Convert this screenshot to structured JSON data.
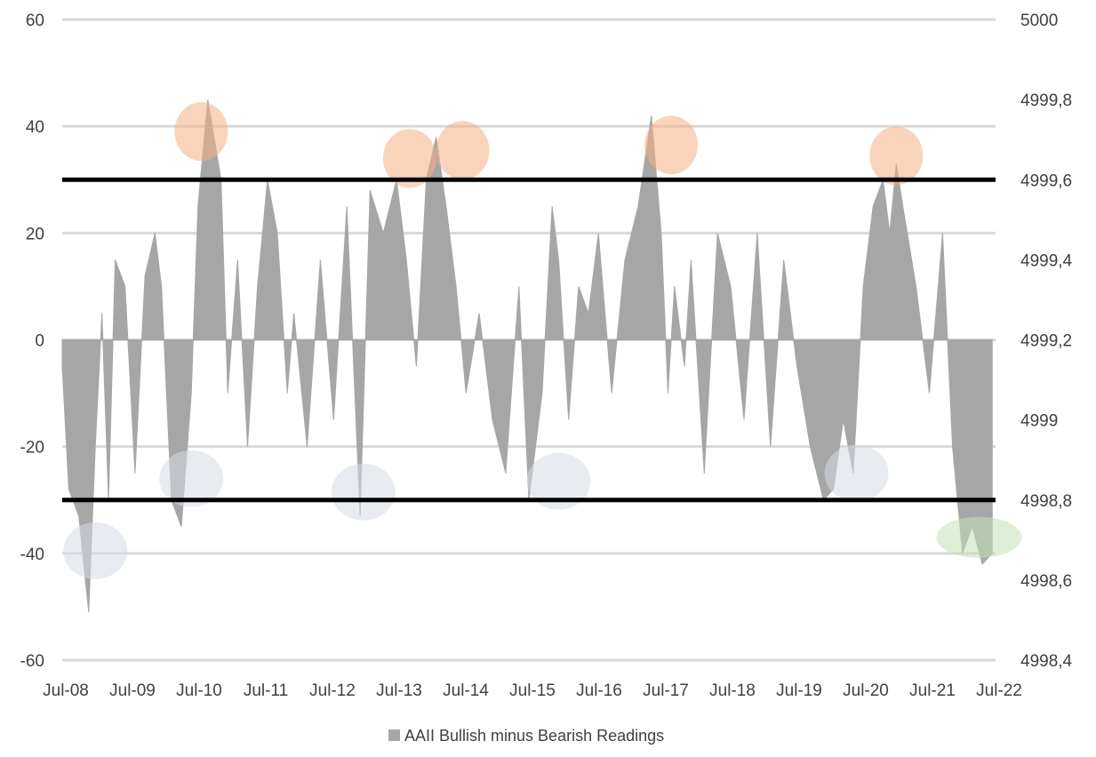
{
  "chart_data": {
    "type": "area",
    "title": "",
    "xlabel": "",
    "ylabel": "",
    "x_categories": [
      "Jul-08",
      "Jul-09",
      "Jul-10",
      "Jul-11",
      "Jul-12",
      "Jul-13",
      "Jul-14",
      "Jul-15",
      "Jul-16",
      "Jul-17",
      "Jul-18",
      "Jul-19",
      "Jul-20",
      "Jul-21",
      "Jul-22"
    ],
    "x_range": [
      2008.5,
      2022.6
    ],
    "ylim_left": [
      -60,
      60
    ],
    "yticks_left": [
      60,
      40,
      20,
      0,
      -20,
      -40,
      -60
    ],
    "ytick_labels_left": [
      "60",
      "40",
      "20",
      "0",
      "-20",
      "-40",
      "-60"
    ],
    "ylim_right": [
      4998.4,
      5000
    ],
    "ytick_labels_right": [
      "5000",
      "4999,8",
      "4999,6",
      "4999,4",
      "4999,2",
      "4999",
      "4998,8",
      "4998,6",
      "4998,4"
    ],
    "grid": true,
    "legend_position": "bottom",
    "series": [
      {
        "name": "AAII Bullish minus Bearish Readings",
        "color": "#a6a6a6",
        "x": [
          2008.5,
          2008.6,
          2008.75,
          2008.9,
          2009.0,
          2009.1,
          2009.2,
          2009.3,
          2009.45,
          2009.6,
          2009.75,
          2009.9,
          2010.0,
          2010.15,
          2010.3,
          2010.45,
          2010.55,
          2010.7,
          2010.9,
          2011.0,
          2011.15,
          2011.3,
          2011.45,
          2011.6,
          2011.75,
          2011.9,
          2012.0,
          2012.2,
          2012.4,
          2012.6,
          2012.8,
          2013.0,
          2013.15,
          2013.35,
          2013.55,
          2013.7,
          2013.85,
          2014.0,
          2014.15,
          2014.3,
          2014.45,
          2014.6,
          2014.8,
          2015.0,
          2015.2,
          2015.4,
          2015.55,
          2015.75,
          2015.9,
          2016.0,
          2016.15,
          2016.3,
          2016.45,
          2016.6,
          2016.8,
          2017.0,
          2017.2,
          2017.4,
          2017.55,
          2017.65,
          2017.75,
          2017.9,
          2018.0,
          2018.2,
          2018.4,
          2018.6,
          2018.8,
          2019.0,
          2019.2,
          2019.4,
          2019.6,
          2019.8,
          2020.0,
          2020.15,
          2020.3,
          2020.45,
          2020.6,
          2020.75,
          2020.9,
          2021.0,
          2021.1,
          2021.2,
          2021.4,
          2021.6,
          2021.8,
          2021.95,
          2022.1,
          2022.25,
          2022.4,
          2022.55
        ],
        "y": [
          -5,
          -28,
          -33,
          -51,
          -20,
          5,
          -30,
          15,
          10,
          -25,
          12,
          20,
          10,
          -30,
          -35,
          -10,
          25,
          45,
          30,
          -10,
          15,
          -20,
          10,
          30,
          20,
          -10,
          5,
          -20,
          15,
          -15,
          25,
          -33,
          28,
          20,
          30,
          15,
          -5,
          30,
          38,
          25,
          10,
          -10,
          5,
          -15,
          -25,
          10,
          -30,
          -10,
          25,
          15,
          -15,
          10,
          5,
          20,
          -10,
          15,
          25,
          42,
          20,
          -10,
          10,
          -5,
          15,
          -25,
          20,
          10,
          -15,
          20,
          -20,
          15,
          -5,
          -20,
          -30,
          -28,
          -15,
          -25,
          10,
          25,
          30,
          20,
          33,
          25,
          10,
          -10,
          20,
          -20,
          -40,
          -35,
          -42,
          -40
        ]
      }
    ],
    "reference_lines": [
      30,
      -30
    ],
    "highlight_regions": [
      {
        "x": 2010.6,
        "y": 39,
        "color": "#f4b183",
        "tone": "high"
      },
      {
        "x": 2013.75,
        "y": 34,
        "color": "#f4b183",
        "tone": "high"
      },
      {
        "x": 2014.55,
        "y": 35.5,
        "color": "#f4b183",
        "tone": "high"
      },
      {
        "x": 2017.7,
        "y": 36.5,
        "color": "#f4b183",
        "tone": "high"
      },
      {
        "x": 2021.1,
        "y": 34.5,
        "color": "#f4b183",
        "tone": "high"
      },
      {
        "x": 2009.0,
        "y": -39.5,
        "color": "#d6dce5",
        "tone": "low"
      },
      {
        "x": 2010.45,
        "y": -26,
        "color": "#d6dce5",
        "tone": "low"
      },
      {
        "x": 2013.05,
        "y": -28.5,
        "color": "#d6dce5",
        "tone": "low"
      },
      {
        "x": 2016.0,
        "y": -26.5,
        "color": "#d6dce5",
        "tone": "low"
      },
      {
        "x": 2020.5,
        "y": -25,
        "color": "#d6dce5",
        "tone": "low"
      },
      {
        "x": 2022.35,
        "y": -37,
        "color": "#c5e0b4",
        "tone": "latest"
      }
    ]
  }
}
